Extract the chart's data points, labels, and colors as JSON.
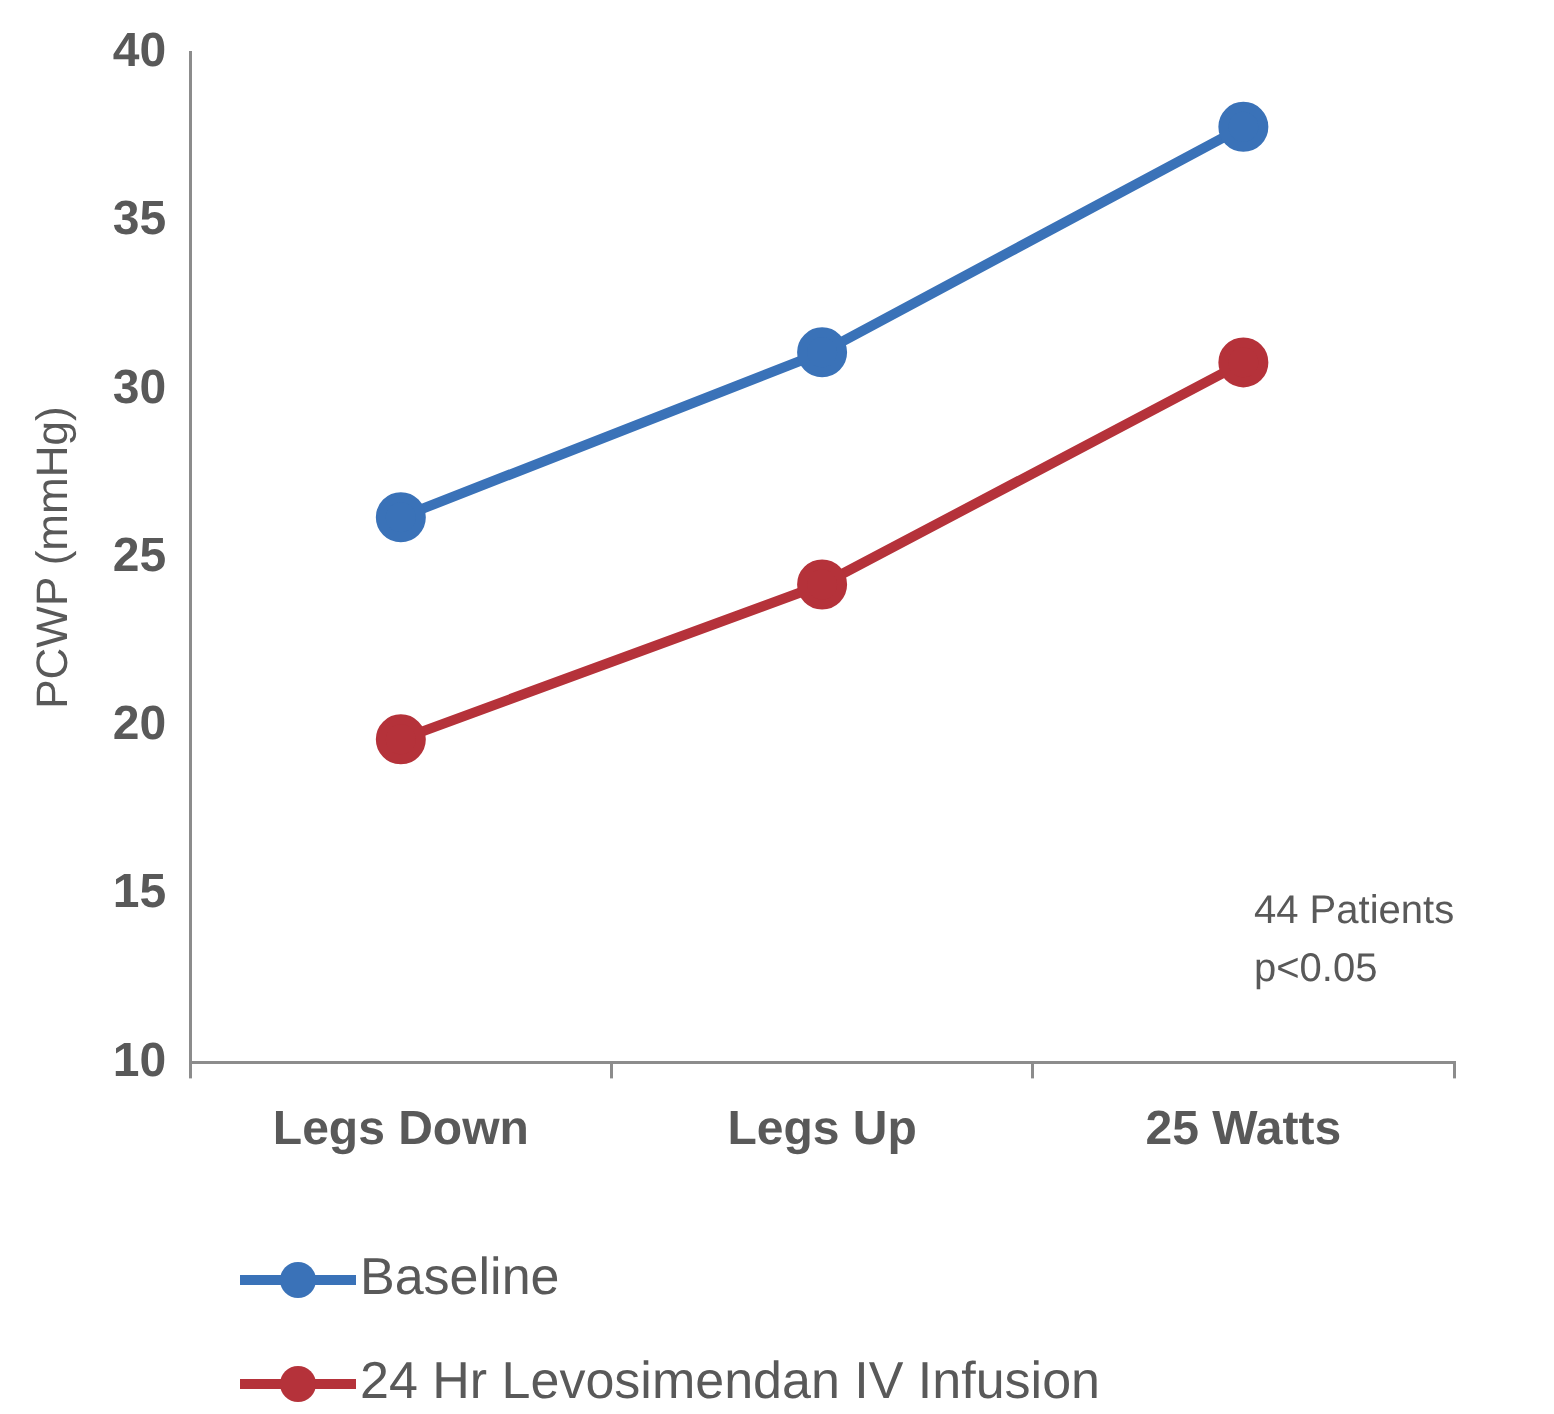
{
  "chart_data": {
    "type": "line",
    "ylabel": "PCWP (mmHg)",
    "categories": [
      "Legs Down",
      "Legs Up",
      "25 Watts"
    ],
    "series": [
      {
        "name": "Baseline",
        "color": "#3a72b8",
        "values": [
          26.2,
          31.1,
          37.8
        ]
      },
      {
        "name": "24 Hr Levosimendan IV Infusion",
        "color": "#b5323a",
        "values": [
          19.6,
          24.2,
          30.8
        ]
      }
    ],
    "ylim": [
      10,
      40
    ],
    "yticks": [
      10,
      15,
      20,
      25,
      30,
      35,
      40
    ],
    "grid": false,
    "legend": "bottom",
    "marker": "circle",
    "line_style": "solid",
    "annotations": [
      "44 Patients",
      "p<0.05"
    ]
  }
}
